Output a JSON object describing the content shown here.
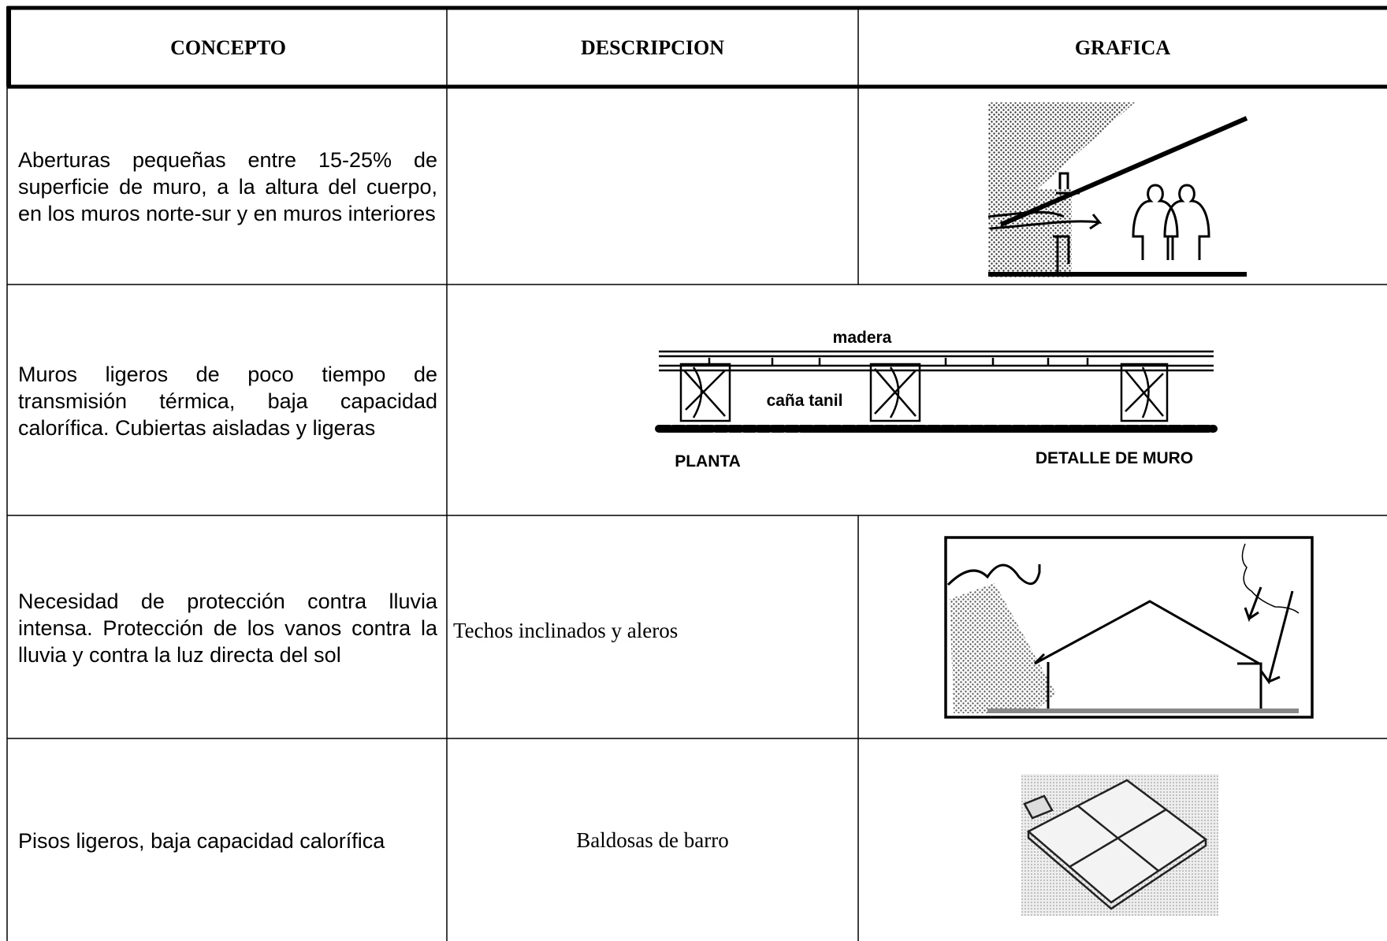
{
  "table": {
    "header": [
      "CONCEPTO",
      "DESCRIPCION",
      "GRAFICA"
    ],
    "rows": [
      {
        "concepto": "Aberturas pequeñas entre 15-25% de superficie de muro, a la altura del cuerpo, en los muros norte-sur y en muros interiores"
      },
      {
        "concepto": "Muros ligeros de poco tiempo de transmisión térmica, baja capacidad calorífica. Cubiertas aisladas y ligeras",
        "graphic_labels": {
          "top": "madera",
          "middle": "caña tanil",
          "left": "PLANTA",
          "right": "DETALLE DE MURO"
        }
      },
      {
        "concepto": "Necesidad de protección contra lluvia intensa. Protección de los vanos contra la lluvia y contra la luz directa del sol",
        "descripcion": "Techos inclinados y aleros"
      },
      {
        "concepto": "Pisos ligeros, baja capacidad calorífica",
        "descripcion": "Baldosas de barro"
      }
    ]
  }
}
